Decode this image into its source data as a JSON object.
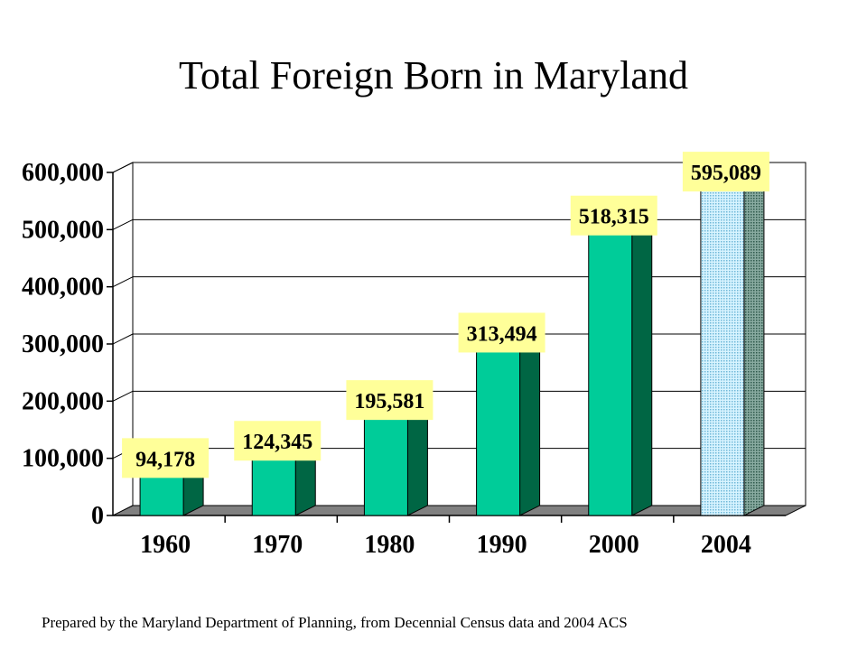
{
  "source_note": "Prepared by the Maryland Department of Planning, from Decennial Census data and 2004 ACS",
  "colors": {
    "bar_front": "#00cc99",
    "bar_side": "#006644",
    "bar_front_estimate": "#cceeff",
    "bar_side_estimate": "#669988",
    "label_box": "#ffff99",
    "floor": "#808080",
    "grid": "#000000"
  },
  "chart_data": {
    "type": "bar",
    "title": "Total Foreign Born in Maryland",
    "xlabel": "",
    "ylabel": "",
    "categories": [
      "1960",
      "1970",
      "1980",
      "1990",
      "2000",
      "2004"
    ],
    "values": [
      94178,
      124345,
      195581,
      313494,
      518315,
      595089
    ],
    "data_labels": [
      "94,178",
      "124,345",
      "195,581",
      "313,494",
      "518,315",
      "595,089"
    ],
    "y_ticks": [
      0,
      100000,
      200000,
      300000,
      400000,
      500000,
      600000
    ],
    "y_tick_labels": [
      "0",
      "100,000",
      "200,000",
      "300,000",
      "400,000",
      "500,000",
      "600,000"
    ],
    "ylim": [
      0,
      600000
    ],
    "grid": true,
    "three_d": true,
    "estimate_category": "2004"
  }
}
